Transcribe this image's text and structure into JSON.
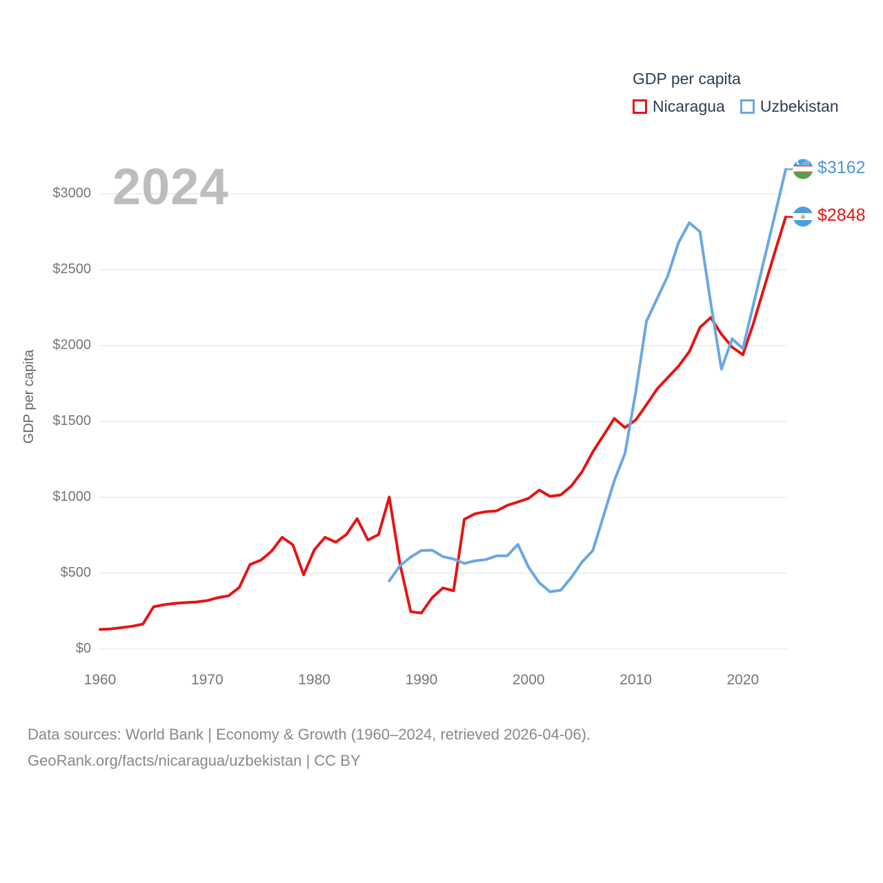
{
  "legend": {
    "title": "GDP per capita",
    "items": [
      {
        "label": "Nicaragua",
        "color": "#e81313"
      },
      {
        "label": "Uzbekistan",
        "color": "#6aa7e4"
      }
    ]
  },
  "watermark": "2024",
  "y_axis": {
    "ticks": [
      "$0",
      "$500",
      "$1000",
      "$1500",
      "$2000",
      "$2500",
      "$3000"
    ],
    "tick_values": [
      0,
      500,
      1000,
      1500,
      2000,
      2500,
      3000
    ]
  },
  "x_axis": {
    "ticks": [
      "1960",
      "1970",
      "1980",
      "1990",
      "2000",
      "2010",
      "2020"
    ]
  },
  "end_labels": [
    {
      "series": "Uzbekistan",
      "label": "$3162",
      "color": "#4d95da",
      "flag": "uzbekistan"
    },
    {
      "series": "Nicaragua",
      "label": "$2848",
      "color": "#e81313",
      "flag": "nicaragua"
    }
  ],
  "footer": {
    "line1": "Data sources: World Bank | Economy & Growth (1960–2024, retrieved 2026-04-06).",
    "line2": "GeoRank.org/facts/nicaragua/uzbekistan | CC BY"
  },
  "chart_data": {
    "type": "line",
    "title": "GDP per capita",
    "ylabel": "GDP per capita",
    "xlabel": "",
    "ylim": [
      0,
      3200
    ],
    "x_range": [
      1960,
      2024
    ],
    "grid": true,
    "grid_step": 500,
    "legend_position": "top-right",
    "series": [
      {
        "name": "Nicaragua",
        "color": "#e81313",
        "start_year": 1960,
        "values": [
          130,
          133,
          142,
          151,
          165,
          279,
          293,
          302,
          307,
          311,
          320,
          339,
          352,
          407,
          558,
          586,
          645,
          737,
          687,
          490,
          654,
          737,
          705,
          755,
          860,
          719,
          755,
          1002,
          558,
          247,
          238,
          339,
          403,
          385,
          856,
          892,
          906,
          911,
          947,
          970,
          993,
          1048,
          1007,
          1016,
          1076,
          1170,
          1300,
          1410,
          1520,
          1460,
          1510,
          1610,
          1715,
          1790,
          1865,
          1960,
          2120,
          2185,
          2075,
          1990,
          1940,
          2150,
          2385,
          2620,
          2848
        ]
      },
      {
        "name": "Uzbekistan",
        "color": "#6aa7e4",
        "start_year": 1987,
        "values": [
          450,
          550,
          607,
          650,
          652,
          610,
          594,
          565,
          582,
          590,
          615,
          615,
          690,
          540,
          437,
          378,
          388,
          473,
          575,
          650,
          880,
          1110,
          1290,
          1695,
          2160,
          2310,
          2460,
          2680,
          2810,
          2750,
          2280,
          1845,
          2045,
          1980,
          2275,
          2570,
          2865,
          3162
        ]
      }
    ],
    "end_values": {
      "Nicaragua": 2848,
      "Uzbekistan": 3162
    }
  }
}
